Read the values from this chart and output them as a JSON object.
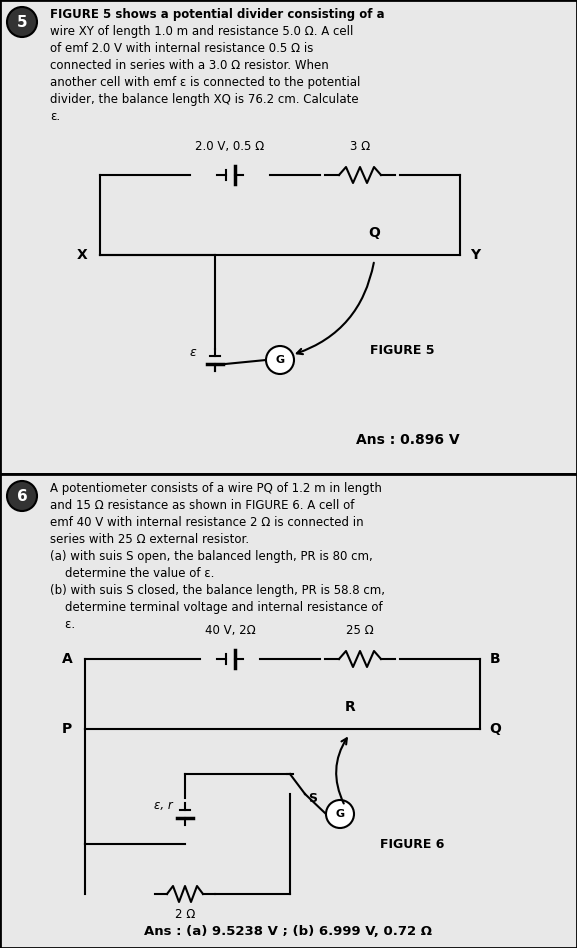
{
  "bg_color": "#d0d0d0",
  "border_color": "#000000",
  "text_color": "#000000",
  "fig5": {
    "question_num": "5",
    "text_lines": [
      "FIGURE 5 shows a potential divider consisting of a",
      "wire XY of length 1.0 m and resistance 5.0 Ω. A cell",
      "of emf 2.0 V with internal resistance 0.5 Ω is",
      "connected in series with a 3.0 Ω resistor. When",
      "another cell with emf ε is connected to the potential",
      "divider, the balance length XQ is 76.2 cm. Calculate",
      "ε."
    ],
    "cell_label": "2.0 V, 0.5 Ω",
    "resistor_label": "3 Ω",
    "figure_label": "FIGURE 5",
    "answer": "Ans : 0.896 V",
    "X_label": "X",
    "Q_label": "Q",
    "Y_label": "Y",
    "eps_label": "ε",
    "G_label": "G"
  },
  "fig6": {
    "question_num": "6",
    "text_lines": [
      "A potentiometer consists of a wire PQ of 1.2 m in length",
      "and 15 Ω resistance as shown in FIGURE 6. A cell of",
      "emf 40 V with internal resistance 2 Ω is connected in",
      "series with 25 Ω external resistor.",
      "(a) with suis S open, the balanced length, PR is 80 cm,",
      "    determine the value of ε.",
      "(b) with suis S closed, the balance length, PR is 58.8 cm,",
      "    determine terminal voltage and internal resistance of",
      "    ε."
    ],
    "cell_label": "40 V, 2Ω",
    "resistor_label": "25 Ω",
    "figure_label": "FIGURE 6",
    "answer": "Ans : (a) 9.5238 V ; (b) 6.999 V, 0.72 Ω",
    "A_label": "A",
    "B_label": "B",
    "P_label": "P",
    "Q_label": "Q",
    "R_label": "R",
    "eps_r_label": "ε, r",
    "S_label": "S",
    "res2_label": "2 Ω",
    "G_label": "G"
  }
}
